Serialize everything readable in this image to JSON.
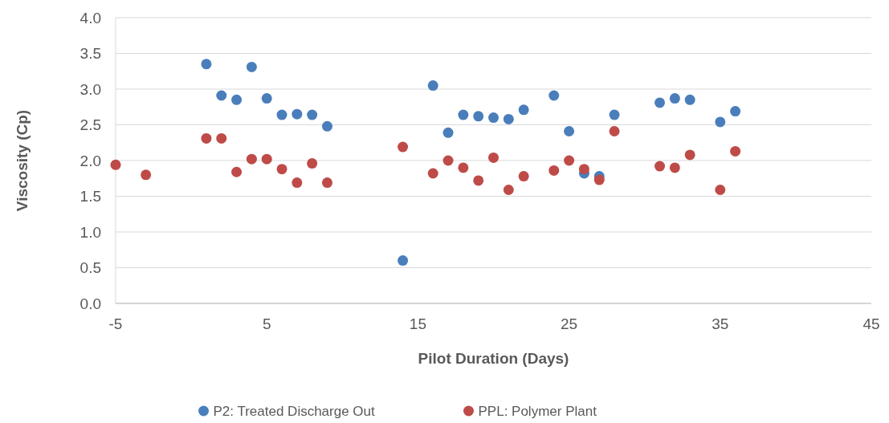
{
  "chart_data": {
    "type": "scatter",
    "xlabel": "Pilot Duration (Days)",
    "ylabel": "Viscosity (Cp)",
    "xlim": [
      -5,
      45
    ],
    "xticks": [
      -5,
      5,
      15,
      25,
      35,
      45
    ],
    "ylim": [
      0,
      4
    ],
    "yticks": [
      {
        "value": 0,
        "label": "0.0"
      },
      {
        "value": 0.5,
        "label": "0.5"
      },
      {
        "value": 1,
        "label": "1.0"
      },
      {
        "value": 1.5,
        "label": "1.5"
      },
      {
        "value": 2,
        "label": "2.0"
      },
      {
        "value": 2.5,
        "label": "2.5"
      },
      {
        "value": 3,
        "label": "3.0"
      },
      {
        "value": 3.5,
        "label": "3.5"
      },
      {
        "value": 4,
        "label": "4.0"
      }
    ],
    "grid": "y",
    "legend": "bottom",
    "marker": "circle",
    "series": [
      {
        "name": "P2: Treated Discharge Out",
        "color": "#4a7ebb",
        "x": [
          1,
          2,
          3,
          4,
          5,
          6,
          7,
          8,
          9,
          14,
          16,
          17,
          18,
          19,
          20,
          21,
          22,
          24,
          25,
          26,
          27,
          28,
          31,
          32,
          33,
          35,
          36
        ],
        "values": [
          3.35,
          2.91,
          2.85,
          3.31,
          2.87,
          2.64,
          2.65,
          2.64,
          2.48,
          0.6,
          3.05,
          2.39,
          2.64,
          2.62,
          2.6,
          2.58,
          2.71,
          2.91,
          2.41,
          1.82,
          1.78,
          2.64,
          2.81,
          2.87,
          2.85,
          2.54,
          2.69
        ]
      },
      {
        "name": "PPL: Polymer Plant",
        "color": "#be4b48",
        "x": [
          -5,
          -3,
          1,
          2,
          3,
          4,
          5,
          6,
          7,
          8,
          9,
          14,
          16,
          17,
          18,
          19,
          20,
          21,
          22,
          24,
          25,
          26,
          27,
          28,
          31,
          32,
          33,
          35,
          36
        ],
        "values": [
          1.94,
          1.8,
          2.31,
          2.31,
          1.84,
          2.02,
          2.02,
          1.88,
          1.69,
          1.96,
          1.69,
          2.19,
          1.82,
          2.0,
          1.9,
          1.72,
          2.04,
          1.59,
          1.78,
          1.86,
          2.0,
          1.88,
          1.73,
          2.41,
          1.92,
          1.9,
          2.08,
          1.59,
          2.13
        ]
      }
    ]
  }
}
